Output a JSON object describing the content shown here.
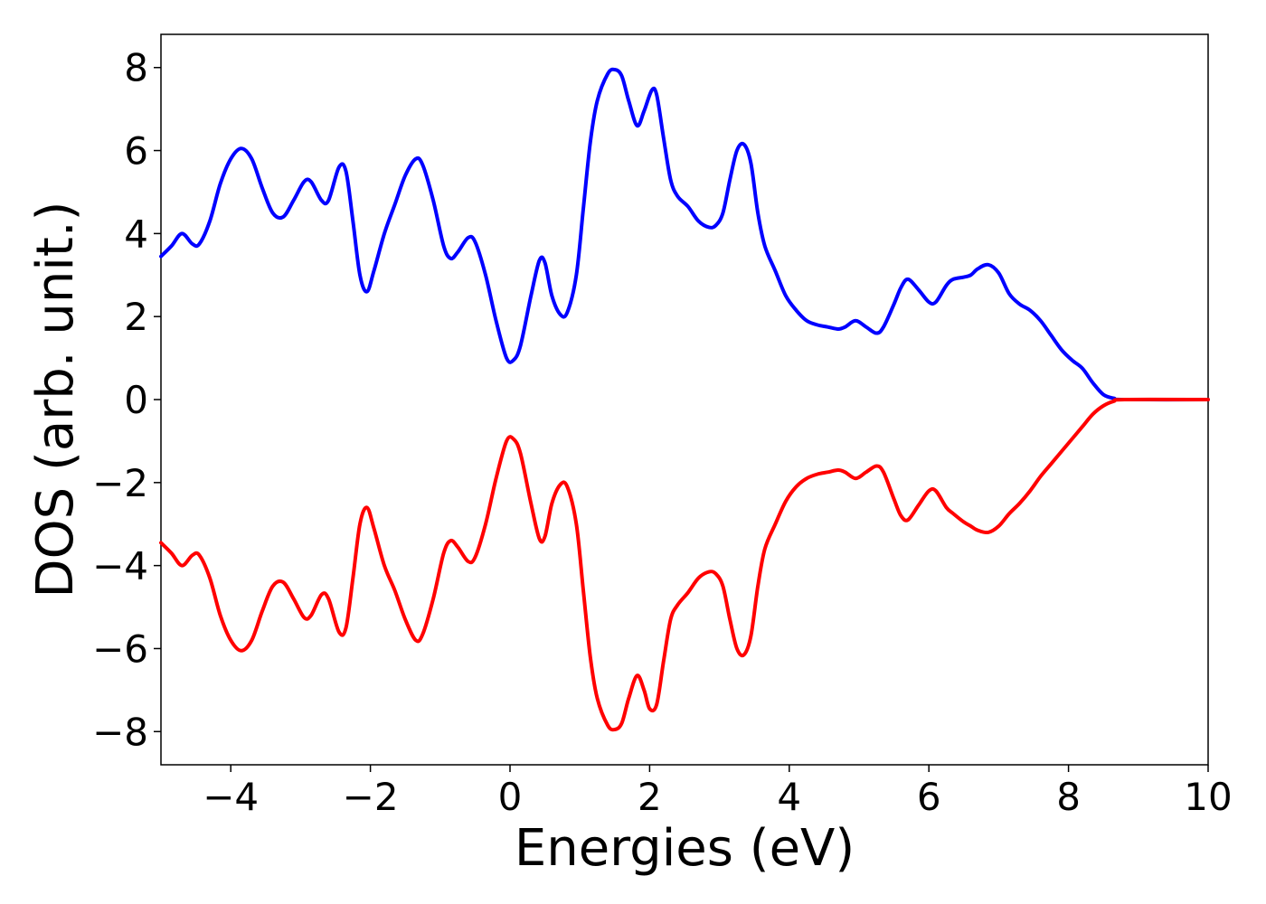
{
  "chart_data": {
    "type": "line",
    "xlabel": "Energies (eV)",
    "ylabel": "DOS (arb. unit.)",
    "xlim": [
      -5,
      10
    ],
    "ylim": [
      -8.8,
      8.8
    ],
    "xticks": [
      -4,
      -2,
      0,
      2,
      4,
      6,
      8,
      10
    ],
    "xtick_labels": [
      "−4",
      "−2",
      "0",
      "2",
      "4",
      "6",
      "8",
      "10"
    ],
    "yticks": [
      8,
      6,
      4,
      2,
      0,
      -2,
      -4,
      -6,
      -8
    ],
    "ytick_labels": [
      "8",
      "6",
      "4",
      "2",
      "0",
      "−2",
      "−4",
      "−6",
      "−8"
    ],
    "grid": false,
    "series": [
      {
        "color": "#0000ff",
        "points": [
          [
            -5.0,
            3.45
          ],
          [
            -4.85,
            3.7
          ],
          [
            -4.7,
            4.0
          ],
          [
            -4.55,
            3.75
          ],
          [
            -4.45,
            3.75
          ],
          [
            -4.3,
            4.3
          ],
          [
            -4.15,
            5.2
          ],
          [
            -4.0,
            5.8
          ],
          [
            -3.85,
            6.05
          ],
          [
            -3.7,
            5.8
          ],
          [
            -3.55,
            5.1
          ],
          [
            -3.4,
            4.5
          ],
          [
            -3.25,
            4.4
          ],
          [
            -3.1,
            4.8
          ],
          [
            -2.95,
            5.25
          ],
          [
            -2.85,
            5.25
          ],
          [
            -2.7,
            4.8
          ],
          [
            -2.6,
            4.8
          ],
          [
            -2.45,
            5.6
          ],
          [
            -2.35,
            5.5
          ],
          [
            -2.25,
            4.3
          ],
          [
            -2.15,
            3.0
          ],
          [
            -2.05,
            2.6
          ],
          [
            -1.95,
            3.1
          ],
          [
            -1.8,
            4.0
          ],
          [
            -1.65,
            4.7
          ],
          [
            -1.5,
            5.4
          ],
          [
            -1.35,
            5.8
          ],
          [
            -1.25,
            5.65
          ],
          [
            -1.1,
            4.8
          ],
          [
            -0.95,
            3.7
          ],
          [
            -0.85,
            3.4
          ],
          [
            -0.75,
            3.55
          ],
          [
            -0.6,
            3.9
          ],
          [
            -0.5,
            3.8
          ],
          [
            -0.35,
            3.0
          ],
          [
            -0.2,
            1.9
          ],
          [
            -0.05,
            1.0
          ],
          [
            0.05,
            0.95
          ],
          [
            0.15,
            1.3
          ],
          [
            0.3,
            2.5
          ],
          [
            0.42,
            3.35
          ],
          [
            0.5,
            3.3
          ],
          [
            0.6,
            2.5
          ],
          [
            0.72,
            2.05
          ],
          [
            0.82,
            2.1
          ],
          [
            0.95,
            3.0
          ],
          [
            1.05,
            4.6
          ],
          [
            1.15,
            6.2
          ],
          [
            1.25,
            7.2
          ],
          [
            1.4,
            7.85
          ],
          [
            1.5,
            7.95
          ],
          [
            1.6,
            7.8
          ],
          [
            1.7,
            7.2
          ],
          [
            1.82,
            6.6
          ],
          [
            1.92,
            6.95
          ],
          [
            2.03,
            7.45
          ],
          [
            2.1,
            7.35
          ],
          [
            2.2,
            6.3
          ],
          [
            2.3,
            5.3
          ],
          [
            2.4,
            4.9
          ],
          [
            2.55,
            4.65
          ],
          [
            2.7,
            4.3
          ],
          [
            2.85,
            4.15
          ],
          [
            2.95,
            4.2
          ],
          [
            3.05,
            4.5
          ],
          [
            3.15,
            5.3
          ],
          [
            3.25,
            6.0
          ],
          [
            3.35,
            6.15
          ],
          [
            3.45,
            5.7
          ],
          [
            3.55,
            4.5
          ],
          [
            3.65,
            3.7
          ],
          [
            3.8,
            3.1
          ],
          [
            3.95,
            2.5
          ],
          [
            4.1,
            2.15
          ],
          [
            4.25,
            1.9
          ],
          [
            4.4,
            1.8
          ],
          [
            4.55,
            1.75
          ],
          [
            4.7,
            1.7
          ],
          [
            4.8,
            1.75
          ],
          [
            4.95,
            1.9
          ],
          [
            5.1,
            1.75
          ],
          [
            5.25,
            1.6
          ],
          [
            5.35,
            1.75
          ],
          [
            5.5,
            2.3
          ],
          [
            5.6,
            2.7
          ],
          [
            5.7,
            2.9
          ],
          [
            5.85,
            2.65
          ],
          [
            6.0,
            2.35
          ],
          [
            6.1,
            2.35
          ],
          [
            6.25,
            2.75
          ],
          [
            6.35,
            2.9
          ],
          [
            6.5,
            2.95
          ],
          [
            6.6,
            3.0
          ],
          [
            6.7,
            3.15
          ],
          [
            6.85,
            3.25
          ],
          [
            7.0,
            3.05
          ],
          [
            7.15,
            2.55
          ],
          [
            7.3,
            2.3
          ],
          [
            7.45,
            2.15
          ],
          [
            7.6,
            1.9
          ],
          [
            7.75,
            1.55
          ],
          [
            7.9,
            1.2
          ],
          [
            8.05,
            0.95
          ],
          [
            8.2,
            0.75
          ],
          [
            8.35,
            0.4
          ],
          [
            8.5,
            0.12
          ],
          [
            8.65,
            0.03
          ],
          [
            8.8,
            0.0
          ],
          [
            10.0,
            0.0
          ]
        ]
      },
      {
        "color": "#ff0000",
        "points": [
          [
            -5.0,
            -3.45
          ],
          [
            -4.85,
            -3.7
          ],
          [
            -4.7,
            -4.0
          ],
          [
            -4.55,
            -3.75
          ],
          [
            -4.45,
            -3.75
          ],
          [
            -4.3,
            -4.3
          ],
          [
            -4.15,
            -5.2
          ],
          [
            -4.0,
            -5.8
          ],
          [
            -3.85,
            -6.05
          ],
          [
            -3.7,
            -5.8
          ],
          [
            -3.55,
            -5.1
          ],
          [
            -3.4,
            -4.5
          ],
          [
            -3.25,
            -4.4
          ],
          [
            -3.1,
            -4.8
          ],
          [
            -2.95,
            -5.25
          ],
          [
            -2.85,
            -5.2
          ],
          [
            -2.7,
            -4.7
          ],
          [
            -2.6,
            -4.8
          ],
          [
            -2.45,
            -5.6
          ],
          [
            -2.35,
            -5.5
          ],
          [
            -2.25,
            -4.3
          ],
          [
            -2.15,
            -3.0
          ],
          [
            -2.05,
            -2.6
          ],
          [
            -1.95,
            -3.1
          ],
          [
            -1.8,
            -4.0
          ],
          [
            -1.65,
            -4.6
          ],
          [
            -1.5,
            -5.3
          ],
          [
            -1.35,
            -5.8
          ],
          [
            -1.25,
            -5.65
          ],
          [
            -1.1,
            -4.8
          ],
          [
            -0.95,
            -3.7
          ],
          [
            -0.85,
            -3.4
          ],
          [
            -0.75,
            -3.55
          ],
          [
            -0.6,
            -3.9
          ],
          [
            -0.5,
            -3.8
          ],
          [
            -0.35,
            -3.0
          ],
          [
            -0.2,
            -1.9
          ],
          [
            -0.05,
            -1.0
          ],
          [
            0.05,
            -0.95
          ],
          [
            0.15,
            -1.3
          ],
          [
            0.3,
            -2.5
          ],
          [
            0.42,
            -3.35
          ],
          [
            0.5,
            -3.3
          ],
          [
            0.6,
            -2.5
          ],
          [
            0.72,
            -2.05
          ],
          [
            0.82,
            -2.1
          ],
          [
            0.95,
            -3.0
          ],
          [
            1.05,
            -4.6
          ],
          [
            1.15,
            -6.2
          ],
          [
            1.25,
            -7.2
          ],
          [
            1.4,
            -7.85
          ],
          [
            1.5,
            -7.95
          ],
          [
            1.6,
            -7.8
          ],
          [
            1.7,
            -7.2
          ],
          [
            1.82,
            -6.65
          ],
          [
            1.92,
            -7.0
          ],
          [
            2.0,
            -7.45
          ],
          [
            2.1,
            -7.35
          ],
          [
            2.2,
            -6.3
          ],
          [
            2.3,
            -5.3
          ],
          [
            2.4,
            -4.95
          ],
          [
            2.55,
            -4.65
          ],
          [
            2.7,
            -4.3
          ],
          [
            2.85,
            -4.15
          ],
          [
            2.95,
            -4.2
          ],
          [
            3.05,
            -4.5
          ],
          [
            3.15,
            -5.3
          ],
          [
            3.25,
            -6.0
          ],
          [
            3.35,
            -6.15
          ],
          [
            3.45,
            -5.7
          ],
          [
            3.55,
            -4.5
          ],
          [
            3.65,
            -3.6
          ],
          [
            3.8,
            -3.0
          ],
          [
            3.95,
            -2.45
          ],
          [
            4.1,
            -2.1
          ],
          [
            4.25,
            -1.9
          ],
          [
            4.4,
            -1.8
          ],
          [
            4.55,
            -1.75
          ],
          [
            4.7,
            -1.7
          ],
          [
            4.8,
            -1.75
          ],
          [
            4.95,
            -1.9
          ],
          [
            5.1,
            -1.75
          ],
          [
            5.25,
            -1.6
          ],
          [
            5.35,
            -1.75
          ],
          [
            5.5,
            -2.4
          ],
          [
            5.6,
            -2.8
          ],
          [
            5.7,
            -2.9
          ],
          [
            5.85,
            -2.55
          ],
          [
            6.0,
            -2.2
          ],
          [
            6.1,
            -2.2
          ],
          [
            6.25,
            -2.6
          ],
          [
            6.35,
            -2.75
          ],
          [
            6.5,
            -2.95
          ],
          [
            6.6,
            -3.05
          ],
          [
            6.7,
            -3.15
          ],
          [
            6.85,
            -3.2
          ],
          [
            7.0,
            -3.05
          ],
          [
            7.15,
            -2.75
          ],
          [
            7.3,
            -2.5
          ],
          [
            7.45,
            -2.2
          ],
          [
            7.6,
            -1.85
          ],
          [
            7.75,
            -1.55
          ],
          [
            7.9,
            -1.25
          ],
          [
            8.05,
            -0.95
          ],
          [
            8.2,
            -0.65
          ],
          [
            8.35,
            -0.35
          ],
          [
            8.5,
            -0.15
          ],
          [
            8.65,
            -0.04
          ],
          [
            8.8,
            0.0
          ],
          [
            10.0,
            0.0
          ]
        ]
      }
    ]
  }
}
